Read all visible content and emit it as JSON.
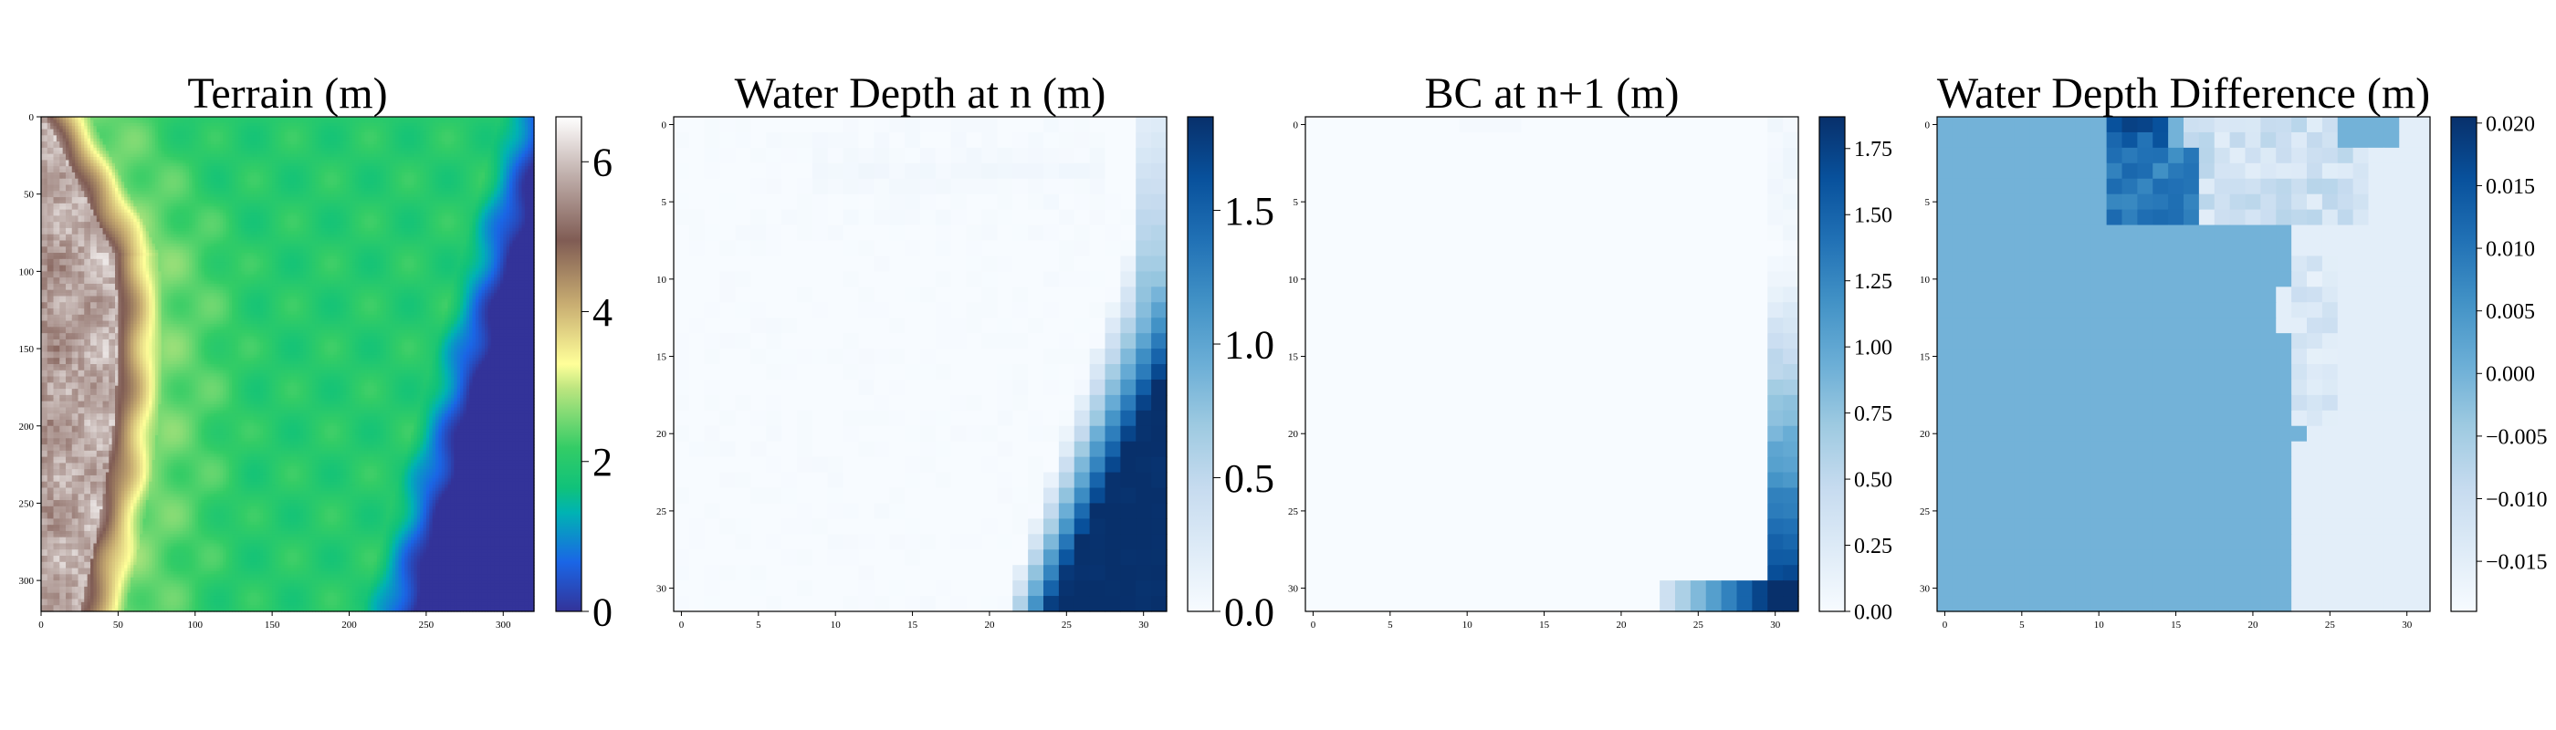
{
  "chart_data": [
    {
      "type": "heatmap",
      "title": "Terrain (m)",
      "colormap": "terrain",
      "xlim": [
        0,
        320
      ],
      "ylim": [
        0,
        320
      ],
      "x_ticks": [
        "0",
        "50",
        "100",
        "150",
        "200",
        "250",
        "300"
      ],
      "y_ticks": [
        "0",
        "50",
        "100",
        "150",
        "200",
        "250",
        "300"
      ],
      "colorbar": {
        "min": 0,
        "max": 6.6,
        "ticks": [
          "0",
          "2",
          "4",
          "6"
        ],
        "tick_values": [
          0,
          2,
          4,
          6
        ]
      },
      "description": "Gray-brown ridge (~5-6 m) along left edge, yellow slope, green plain (~2 m) in center, blue channel (~0.5 m) in lower right"
    },
    {
      "type": "heatmap",
      "title": "Water Depth at n (m)",
      "colormap": "Blues",
      "xlim": [
        0,
        31
      ],
      "ylim": [
        0,
        31
      ],
      "x_ticks": [
        "0",
        "5",
        "10",
        "15",
        "20",
        "25",
        "30"
      ],
      "y_ticks": [
        "0",
        "5",
        "10",
        "15",
        "20",
        "25",
        "30"
      ],
      "colorbar": {
        "min": 0,
        "max": 1.85,
        "ticks": [
          "0.0",
          "0.5",
          "1.0",
          "1.5"
        ],
        "tick_values": [
          0,
          0.5,
          1.0,
          1.5
        ]
      },
      "description": "Deep water (~1.8 m) concentrated in lower-right corner, spreading along the right edge, faint plume along the top"
    },
    {
      "type": "heatmap",
      "title": "BC at n+1 (m)",
      "colormap": "Blues",
      "xlim": [
        0,
        31
      ],
      "ylim": [
        0,
        31
      ],
      "x_ticks": [
        "0",
        "5",
        "10",
        "15",
        "20",
        "25",
        "30"
      ],
      "y_ticks": [
        "0",
        "5",
        "10",
        "15",
        "20",
        "25",
        "30"
      ],
      "colorbar": {
        "min": 0,
        "max": 1.87,
        "ticks": [
          "0.00",
          "0.25",
          "0.50",
          "0.75",
          "1.00",
          "1.25",
          "1.50",
          "1.75"
        ],
        "tick_values": [
          0,
          0.25,
          0.5,
          0.75,
          1.0,
          1.25,
          1.5,
          1.75
        ]
      },
      "description": "Boundary condition values only along right column and bottom row, deepest in lower-right"
    },
    {
      "type": "heatmap",
      "title": "Water Depth Difference (m)",
      "colormap": "Blues",
      "xlim": [
        0,
        31
      ],
      "ylim": [
        0,
        31
      ],
      "x_ticks": [
        "0",
        "5",
        "10",
        "15",
        "20",
        "25",
        "30"
      ],
      "y_ticks": [
        "0",
        "5",
        "10",
        "15",
        "20",
        "25",
        "30"
      ],
      "colorbar": {
        "min": -0.019,
        "max": 0.0205,
        "ticks": [
          "0.020",
          "0.015",
          "0.010",
          "0.005",
          "0.000",
          "−0.005",
          "−0.010",
          "−0.015"
        ],
        "tick_values": [
          0.02,
          0.015,
          0.01,
          0.005,
          0.0,
          -0.005,
          -0.01,
          -0.015
        ]
      },
      "description": "Mostly ~0.000 (medium blue); negative (~-0.015) region on right and along upper plume; positive (~0.02) cells near top around x=11-14"
    }
  ]
}
